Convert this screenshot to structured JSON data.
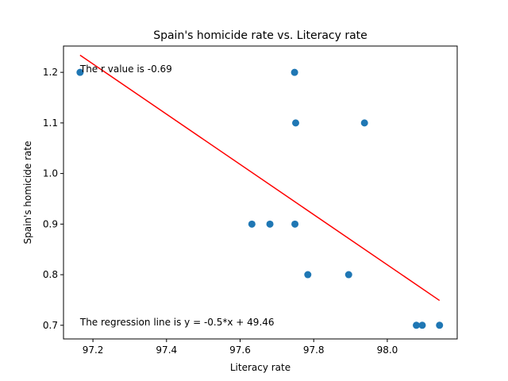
{
  "chart_data": {
    "type": "scatter",
    "title": "Spain's homicide rate vs. Literacy rate",
    "xlabel": "Literacy rate",
    "ylabel": "Spain's homicide rate",
    "xlim": [
      97.12,
      98.19
    ],
    "ylim": [
      0.673,
      1.252
    ],
    "xticks": [
      97.2,
      97.4,
      97.6,
      97.8,
      98.0
    ],
    "xtick_labels": [
      "97.2",
      "97.4",
      "97.6",
      "97.8",
      "98.0"
    ],
    "yticks": [
      0.7,
      0.8,
      0.9,
      1.0,
      1.1,
      1.2
    ],
    "ytick_labels": [
      "0.7",
      "0.8",
      "0.9",
      "1.0",
      "1.1",
      "1.2"
    ],
    "grid": false,
    "points": [
      {
        "x": 97.165,
        "y": 1.2
      },
      {
        "x": 97.748,
        "y": 1.2
      },
      {
        "x": 97.751,
        "y": 1.1
      },
      {
        "x": 97.938,
        "y": 1.1
      },
      {
        "x": 97.632,
        "y": 0.9
      },
      {
        "x": 97.681,
        "y": 0.9
      },
      {
        "x": 97.749,
        "y": 0.9
      },
      {
        "x": 97.784,
        "y": 0.8
      },
      {
        "x": 97.895,
        "y": 0.8
      },
      {
        "x": 98.079,
        "y": 0.7
      },
      {
        "x": 98.095,
        "y": 0.7
      },
      {
        "x": 98.142,
        "y": 0.7
      }
    ],
    "regression": {
      "slope": -0.5,
      "intercept": 49.46,
      "x_range": [
        97.165,
        98.142
      ],
      "y_range": [
        1.234,
        0.749
      ]
    },
    "annotations": [
      {
        "text": "The r value is -0.69",
        "x": 97.165,
        "y": 1.2
      },
      {
        "text": "The regression line is y = -0.5*x + 49.46",
        "x": 97.165,
        "y": 0.7
      }
    ],
    "colors": {
      "points": "#1f77b4",
      "regression": "#ff0000",
      "axes": "#000000"
    }
  }
}
